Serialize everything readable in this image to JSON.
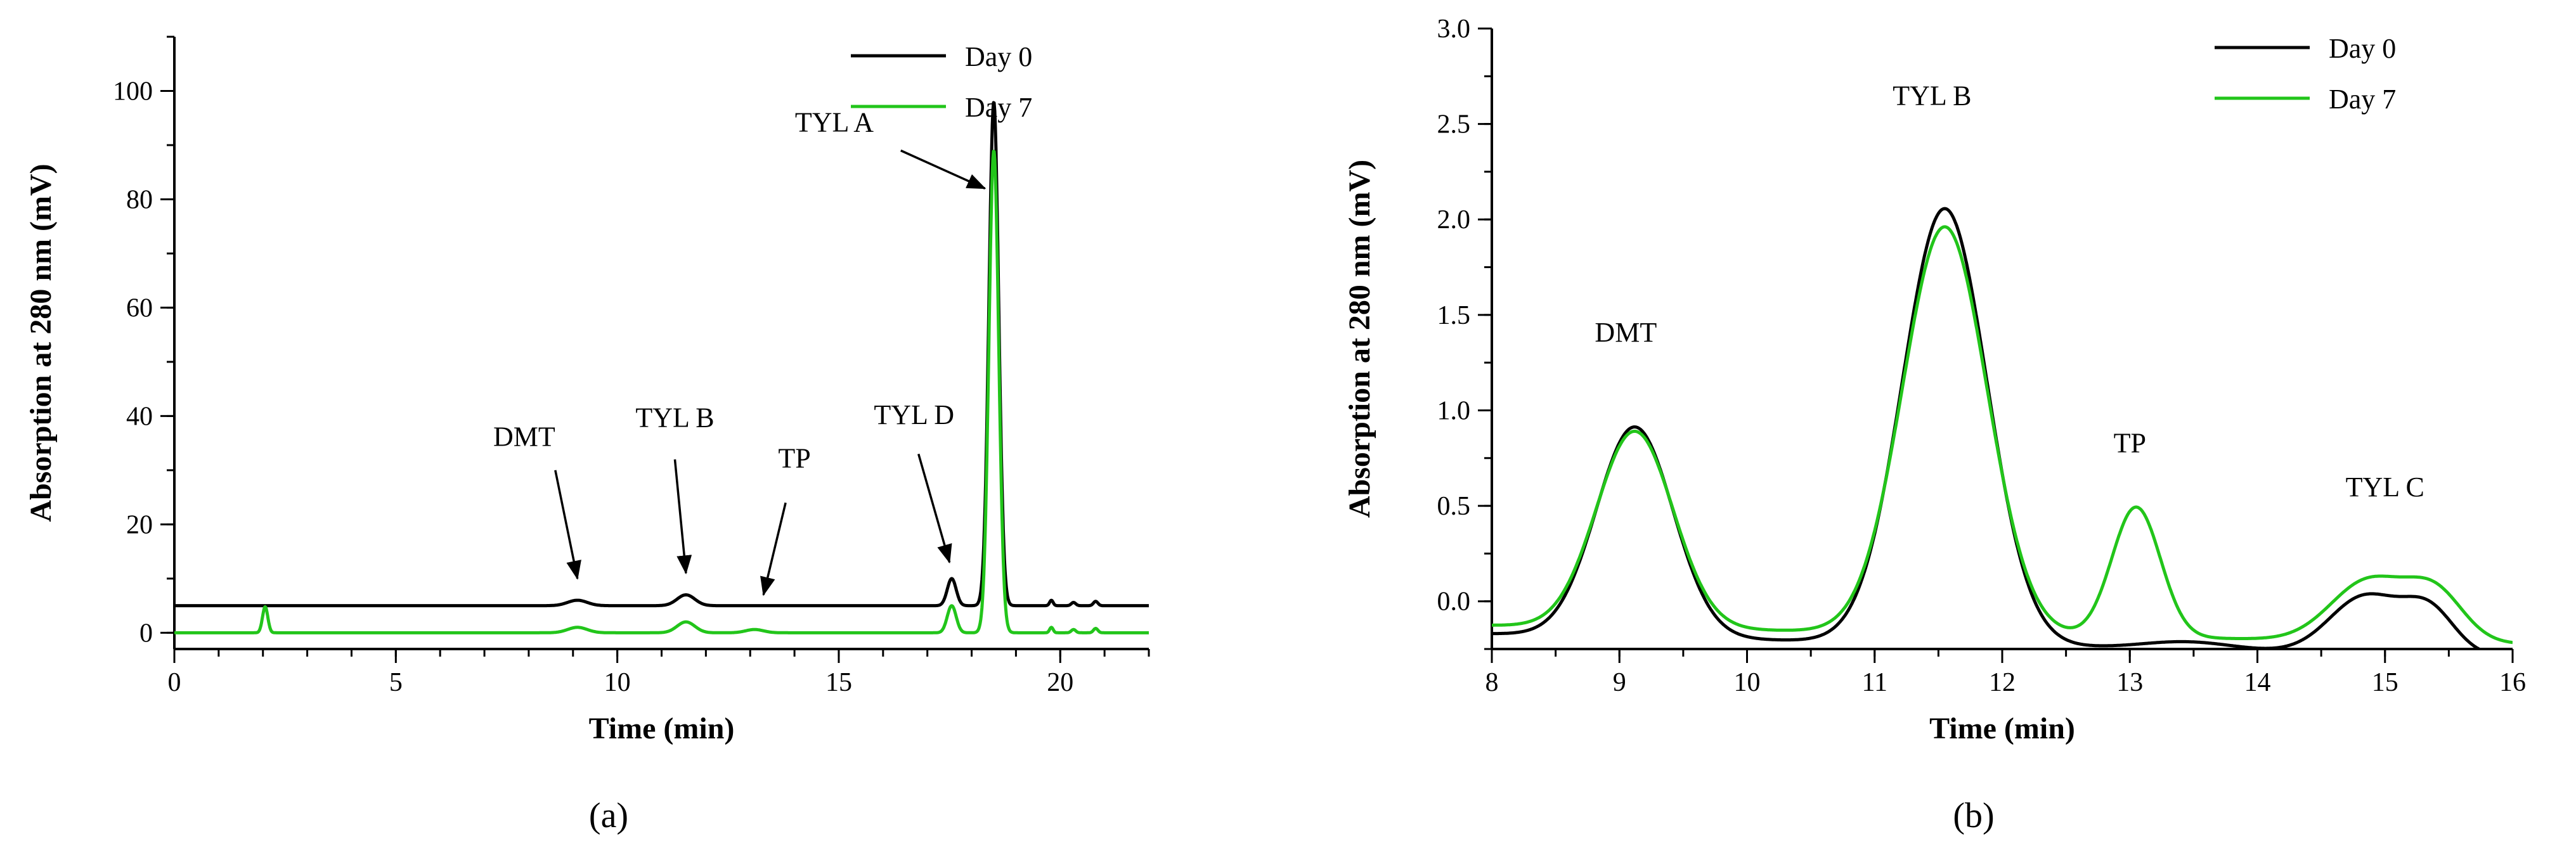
{
  "colors": {
    "day0": "#000000",
    "day7": "#22c51a"
  },
  "chart_data": [
    {
      "id": "a",
      "type": "line",
      "panel_label": "(a)",
      "xlabel": "Time (min)",
      "ylabel": "Absorption at 280 nm (mV)",
      "xlim": [
        0,
        22
      ],
      "ylim": [
        -3,
        110
      ],
      "xticks": [
        0,
        5,
        10,
        15,
        20
      ],
      "yticks": [
        0,
        20,
        40,
        60,
        80,
        100
      ],
      "xminor_step": 1,
      "yminor_step": 10,
      "legend": {
        "position": "top-right",
        "entries": [
          "Day 0",
          "Day 7"
        ]
      },
      "series": [
        {
          "name": "Day 0",
          "color": "day0",
          "baseline": 5,
          "baseline_slope": 0,
          "peaks": [
            {
              "t": 9.1,
              "h": 1.0,
              "w": 0.22
            },
            {
              "t": 11.55,
              "h": 2.0,
              "w": 0.2
            },
            {
              "t": 17.55,
              "h": 5.0,
              "w": 0.1
            },
            {
              "t": 18.5,
              "h": 93,
              "w": 0.11
            },
            {
              "t": 19.8,
              "h": 1.0,
              "w": 0.04
            },
            {
              "t": 20.3,
              "h": 0.6,
              "w": 0.05
            },
            {
              "t": 20.8,
              "h": 0.8,
              "w": 0.05
            }
          ]
        },
        {
          "name": "Day 7",
          "color": "day7",
          "baseline": 0,
          "baseline_slope": 0,
          "peaks": [
            {
              "t": 2.05,
              "h": 4.8,
              "w": 0.06
            },
            {
              "t": 9.1,
              "h": 1.0,
              "w": 0.22
            },
            {
              "t": 11.55,
              "h": 2.0,
              "w": 0.2
            },
            {
              "t": 13.1,
              "h": 0.6,
              "w": 0.2
            },
            {
              "t": 17.55,
              "h": 5.0,
              "w": 0.1
            },
            {
              "t": 18.5,
              "h": 89,
              "w": 0.11
            },
            {
              "t": 19.8,
              "h": 1.0,
              "w": 0.04
            },
            {
              "t": 20.3,
              "h": 0.6,
              "w": 0.05
            },
            {
              "t": 20.8,
              "h": 0.8,
              "w": 0.05
            }
          ]
        }
      ],
      "annotations": [
        {
          "text": "DMT",
          "label_x": 7.9,
          "label_y": 34.5,
          "from": [
            8.6,
            30
          ],
          "to": [
            9.1,
            10
          ]
        },
        {
          "text": "TYL B",
          "label_x": 11.3,
          "label_y": 38,
          "from": [
            11.3,
            32
          ],
          "to": [
            11.55,
            11
          ]
        },
        {
          "text": "TP",
          "label_x": 14.0,
          "label_y": 30.5,
          "from": [
            13.8,
            24
          ],
          "to": [
            13.3,
            7
          ]
        },
        {
          "text": "TYL D",
          "label_x": 16.7,
          "label_y": 38.5,
          "from": [
            16.8,
            33
          ],
          "to": [
            17.5,
            13
          ]
        },
        {
          "text": "TYL A",
          "label_x": 14.9,
          "label_y": 92.5,
          "from": [
            16.4,
            89
          ],
          "to": [
            18.3,
            82
          ]
        }
      ]
    },
    {
      "id": "b",
      "type": "line",
      "panel_label": "(b)",
      "xlabel": "Time (min)",
      "ylabel": "Absorption at 280 nm (mV)",
      "xlim": [
        8,
        16
      ],
      "ylim": [
        -0.25,
        3.0
      ],
      "xticks": [
        8,
        9,
        10,
        11,
        12,
        13,
        14,
        15,
        16
      ],
      "yticks": [
        0.0,
        0.5,
        1.0,
        1.5,
        2.0,
        2.5,
        3.0
      ],
      "xtick_labels": [
        "8",
        "9",
        "10",
        "11",
        "12",
        "13",
        "14",
        "15",
        "16"
      ],
      "ytick_labels": [
        "0.0",
        "0.5",
        "1.0",
        "1.5",
        "2.0",
        "2.5",
        "3.0"
      ],
      "xminor_step": 0.5,
      "yminor_step": 0.25,
      "legend": {
        "position": "top-right",
        "entries": [
          "Day 0",
          "Day 7"
        ]
      },
      "series": [
        {
          "name": "Day 0",
          "color": "day0",
          "baseline": -0.05,
          "baseline_slope": -0.015,
          "peaks": [
            {
              "t": 9.12,
              "h": 1.1,
              "w": 0.3
            },
            {
              "t": 11.55,
              "h": 2.28,
              "w": 0.33
            },
            {
              "t": 13.45,
              "h": 0.04,
              "w": 0.35
            },
            {
              "t": 14.85,
              "h": 0.3,
              "w": 0.28
            },
            {
              "t": 15.35,
              "h": 0.22,
              "w": 0.2
            }
          ]
        },
        {
          "name": "Day 7",
          "color": "day7",
          "baseline": -0.03,
          "baseline_slope": -0.012,
          "peaks": [
            {
              "t": 9.12,
              "h": 1.03,
              "w": 0.3
            },
            {
              "t": 11.55,
              "h": 2.13,
              "w": 0.33
            },
            {
              "t": 13.05,
              "h": 0.68,
              "w": 0.19
            },
            {
              "t": 14.88,
              "h": 0.32,
              "w": 0.3
            },
            {
              "t": 15.4,
              "h": 0.24,
              "w": 0.22
            }
          ]
        }
      ],
      "annotations": [
        {
          "text": "DMT",
          "label_x": 9.05,
          "label_y": 1.36
        },
        {
          "text": "TYL B",
          "label_x": 11.45,
          "label_y": 2.6
        },
        {
          "text": "TP",
          "label_x": 13.0,
          "label_y": 0.78
        },
        {
          "text": "TYL C",
          "label_x": 15.0,
          "label_y": 0.55
        }
      ]
    }
  ]
}
